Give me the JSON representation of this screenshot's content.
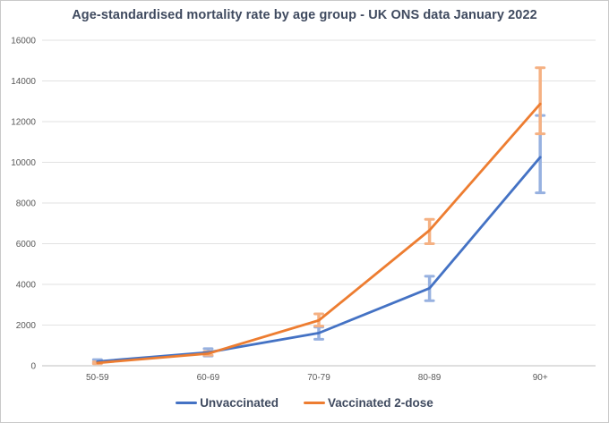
{
  "title": "Age-standardised mortality rate by age group - UK ONS data January 2022",
  "colors": {
    "unvaccinated": "#4472c4",
    "vaccinated": "#ed7d31",
    "unvaccinated_error": "#97b1e0",
    "vaccinated_error": "#f5b183",
    "grid": "#e2e2e2",
    "axis": "#bfbfbf",
    "tick_text": "#595959",
    "title_text": "#3f4a5f"
  },
  "chart_data": {
    "type": "line",
    "title": "Age-standardised mortality rate by age group - UK ONS data January 2022",
    "categories": [
      "50-59",
      "60-69",
      "70-79",
      "80-89",
      "90+"
    ],
    "series": [
      {
        "name": "Unvaccinated",
        "color_key": "unvaccinated",
        "values": [
          210,
          660,
          1610,
          3810,
          10250
        ],
        "error_low": [
          140,
          480,
          1300,
          3200,
          8500
        ],
        "error_high": [
          300,
          840,
          1900,
          4400,
          12300
        ]
      },
      {
        "name": "Vaccinated 2-dose",
        "color_key": "vaccinated",
        "values": [
          140,
          600,
          2230,
          6660,
          12870
        ],
        "error_low": [
          100,
          520,
          1950,
          6000,
          11400
        ],
        "error_high": [
          190,
          690,
          2550,
          7200,
          14650
        ]
      }
    ],
    "xlabel": "",
    "ylabel": "",
    "ylim": [
      0,
      16000
    ],
    "yticks": [
      0,
      2000,
      4000,
      6000,
      8000,
      10000,
      12000,
      14000,
      16000
    ],
    "grid": "horizontal",
    "legend_position": "bottom",
    "error_bars": true
  }
}
